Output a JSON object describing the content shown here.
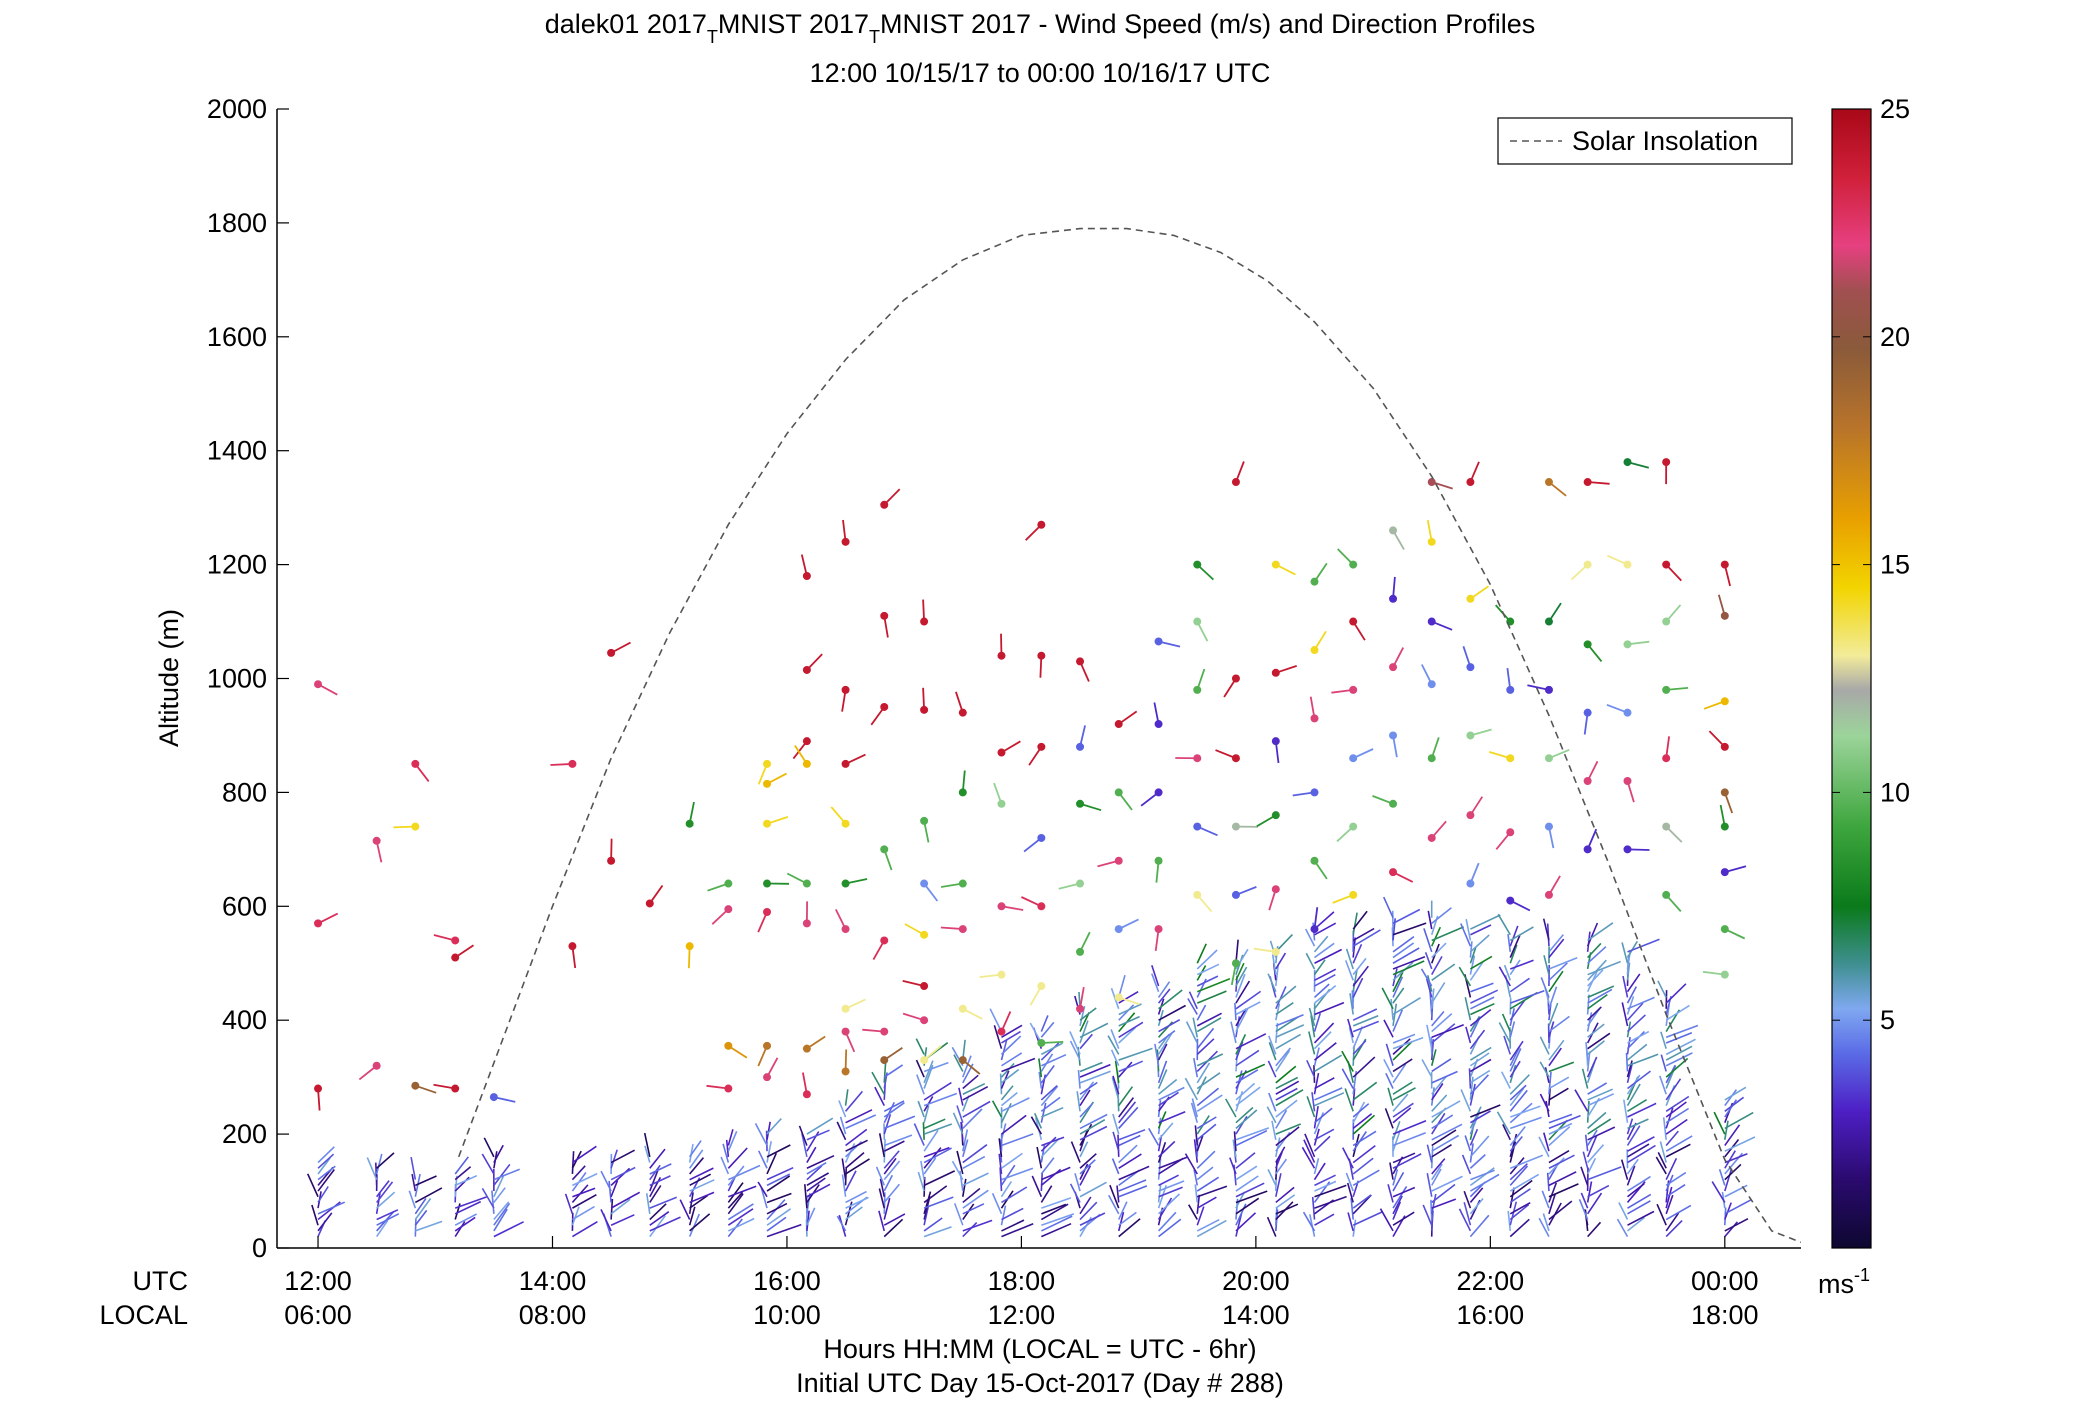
{
  "chart_data": {
    "type": "scatter",
    "title_line1_main": "dalek01 2017",
    "title_line1_sub1": "T",
    "title_line1_mid": "MNIST 2017",
    "title_line1_sub2": "T",
    "title_line1_end": "MNIST 2017 - Wind Speed (m/s) and Direction Profiles",
    "title_line2": "12:00 10/15/17 to 00:00 10/16/17  UTC",
    "ylabel": "Altitude (m)",
    "xlabel_line1": "Hours HH:MM  (LOCAL = UTC - 6hr)",
    "xlabel_line2": "Initial UTC Day 15-Oct-2017 (Day # 288)",
    "x_row_labels": [
      "UTC",
      "LOCAL"
    ],
    "xlim_hours_utc": [
      11.65,
      24.65
    ],
    "ylim": [
      0,
      2000
    ],
    "y_ticks": [
      0,
      200,
      400,
      600,
      800,
      1000,
      1200,
      1400,
      1600,
      1800,
      2000
    ],
    "x_ticks_utc": [
      {
        "hour": 12,
        "utc": "12:00",
        "local": "06:00"
      },
      {
        "hour": 14,
        "utc": "14:00",
        "local": "08:00"
      },
      {
        "hour": 16,
        "utc": "16:00",
        "local": "10:00"
      },
      {
        "hour": 18,
        "utc": "18:00",
        "local": "12:00"
      },
      {
        "hour": 20,
        "utc": "20:00",
        "local": "14:00"
      },
      {
        "hour": 22,
        "utc": "22:00",
        "local": "16:00"
      },
      {
        "hour": 24,
        "utc": "00:00",
        "local": "18:00"
      }
    ],
    "legend": {
      "label": "Solar Insolation",
      "placement": "top-right",
      "style": "dashed gray"
    },
    "colorbar": {
      "range": [
        0,
        25
      ],
      "ticks": [
        5,
        10,
        15,
        20,
        25
      ],
      "unit_base": "ms",
      "unit_exp": "-1",
      "colors": [
        "#0d0830",
        "#2a0a6e",
        "#4d1fc4",
        "#5a6ae6",
        "#7fa8f0",
        "#3e8f8f",
        "#0a7a1a",
        "#3ea63e",
        "#9cd49a",
        "#a8a8a8",
        "#f2ec9a",
        "#f2d400",
        "#e8a000",
        "#b8742a",
        "#8a5a3a",
        "#a05050",
        "#e64080",
        "#d0203a",
        "#a80818"
      ]
    },
    "solar_insolation": {
      "x_hours_utc": [
        13.2,
        13.6,
        14.0,
        14.5,
        15.0,
        15.5,
        16.0,
        16.5,
        17.0,
        17.5,
        18.0,
        18.5,
        18.9,
        19.3,
        19.7,
        20.1,
        20.5,
        21.0,
        21.5,
        22.0,
        22.5,
        23.0,
        23.5,
        24.0,
        24.4,
        24.65
      ],
      "y_m": [
        160,
        380,
        600,
        860,
        1080,
        1270,
        1430,
        1560,
        1665,
        1735,
        1778,
        1790,
        1790,
        1778,
        1748,
        1698,
        1626,
        1510,
        1355,
        1165,
        935,
        680,
        410,
        155,
        30,
        10
      ]
    },
    "profiles": [
      {
        "time": 12.0,
        "top_m": 150,
        "pts": [
          [
            990,
            22
          ],
          [
            570,
            23
          ],
          [
            280,
            24
          ]
        ]
      },
      {
        "time": 12.5,
        "top_m": 140,
        "pts": [
          [
            715,
            22
          ],
          [
            320,
            22
          ]
        ]
      },
      {
        "time": 12.83,
        "top_m": 120,
        "pts": [
          [
            850,
            23
          ],
          [
            740,
            15
          ],
          [
            285,
            19
          ]
        ]
      },
      {
        "time": 13.17,
        "top_m": 130,
        "pts": [
          [
            540,
            23
          ],
          [
            510,
            24
          ],
          [
            280,
            24
          ]
        ]
      },
      {
        "time": 13.5,
        "top_m": 160,
        "pts": [
          [
            265,
            4
          ]
        ]
      },
      {
        "time": 14.17,
        "top_m": 150,
        "pts": [
          [
            850,
            23
          ],
          [
            530,
            24
          ]
        ]
      },
      {
        "time": 14.5,
        "top_m": 150,
        "pts": [
          [
            1045,
            24
          ],
          [
            680,
            24
          ]
        ]
      },
      {
        "time": 14.83,
        "top_m": 160,
        "pts": [
          [
            605,
            24
          ]
        ]
      },
      {
        "time": 15.17,
        "top_m": 160,
        "pts": [
          [
            745,
            9
          ],
          [
            530,
            16
          ]
        ]
      },
      {
        "time": 15.5,
        "top_m": 180,
        "pts": [
          [
            640,
            10
          ],
          [
            595,
            22
          ],
          [
            355,
            17
          ],
          [
            280,
            23
          ]
        ]
      },
      {
        "time": 15.83,
        "top_m": 200,
        "pts": [
          [
            850,
            15
          ],
          [
            815,
            16
          ],
          [
            745,
            15
          ],
          [
            640,
            9
          ],
          [
            590,
            23
          ],
          [
            355,
            18
          ],
          [
            300,
            22
          ]
        ]
      },
      {
        "time": 16.17,
        "top_m": 200,
        "pts": [
          [
            1180,
            24
          ],
          [
            1015,
            24
          ],
          [
            890,
            24
          ],
          [
            850,
            16
          ],
          [
            640,
            10
          ],
          [
            570,
            22
          ],
          [
            350,
            18
          ],
          [
            270,
            23
          ]
        ]
      },
      {
        "time": 16.5,
        "top_m": 250,
        "pts": [
          [
            1240,
            24
          ],
          [
            980,
            24
          ],
          [
            850,
            24
          ],
          [
            745,
            15
          ],
          [
            640,
            9
          ],
          [
            560,
            22
          ],
          [
            420,
            14
          ],
          [
            380,
            22
          ],
          [
            310,
            18
          ]
        ]
      },
      {
        "time": 16.83,
        "top_m": 300,
        "pts": [
          [
            1305,
            24
          ],
          [
            1110,
            24
          ],
          [
            950,
            24
          ],
          [
            700,
            10
          ],
          [
            540,
            23
          ],
          [
            380,
            22
          ],
          [
            330,
            19
          ]
        ]
      },
      {
        "time": 17.17,
        "top_m": 340,
        "pts": [
          [
            1100,
            24
          ],
          [
            945,
            24
          ],
          [
            750,
            10
          ],
          [
            640,
            5
          ],
          [
            550,
            15
          ],
          [
            460,
            24
          ],
          [
            400,
            22
          ],
          [
            330,
            14
          ]
        ]
      },
      {
        "time": 17.5,
        "top_m": 330,
        "pts": [
          [
            940,
            24
          ],
          [
            800,
            9
          ],
          [
            640,
            10
          ],
          [
            560,
            22
          ],
          [
            420,
            14
          ],
          [
            330,
            19
          ]
        ]
      },
      {
        "time": 17.83,
        "top_m": 380,
        "pts": [
          [
            1040,
            24
          ],
          [
            870,
            24
          ],
          [
            780,
            11
          ],
          [
            600,
            22
          ],
          [
            480,
            14
          ],
          [
            380,
            23
          ]
        ]
      },
      {
        "time": 18.17,
        "top_m": 380,
        "pts": [
          [
            1270,
            24
          ],
          [
            1040,
            24
          ],
          [
            880,
            24
          ],
          [
            720,
            4
          ],
          [
            600,
            23
          ],
          [
            460,
            14
          ],
          [
            360,
            10
          ]
        ]
      },
      {
        "time": 18.5,
        "top_m": 420,
        "pts": [
          [
            1030,
            24
          ],
          [
            880,
            4
          ],
          [
            780,
            9
          ],
          [
            640,
            11
          ],
          [
            520,
            10
          ],
          [
            420,
            22
          ]
        ]
      },
      {
        "time": 18.83,
        "top_m": 440,
        "pts": [
          [
            920,
            24
          ],
          [
            800,
            10
          ],
          [
            680,
            22
          ],
          [
            560,
            5
          ],
          [
            440,
            14
          ]
        ]
      },
      {
        "time": 19.17,
        "top_m": 460,
        "pts": [
          [
            1065,
            4
          ],
          [
            920,
            3
          ],
          [
            800,
            3
          ],
          [
            680,
            10
          ],
          [
            560,
            22
          ]
        ]
      },
      {
        "time": 19.5,
        "top_m": 500,
        "pts": [
          [
            1200,
            9
          ],
          [
            1100,
            11
          ],
          [
            980,
            10
          ],
          [
            860,
            22
          ],
          [
            740,
            4
          ],
          [
            620,
            14
          ]
        ]
      },
      {
        "time": 19.83,
        "top_m": 500,
        "pts": [
          [
            1345,
            24
          ],
          [
            1000,
            24
          ],
          [
            860,
            24
          ],
          [
            740,
            12
          ],
          [
            620,
            4
          ],
          [
            500,
            10
          ]
        ]
      },
      {
        "time": 20.17,
        "top_m": 520,
        "pts": [
          [
            1200,
            15
          ],
          [
            1010,
            24
          ],
          [
            890,
            3
          ],
          [
            760,
            9
          ],
          [
            630,
            22
          ],
          [
            520,
            14
          ]
        ]
      },
      {
        "time": 20.5,
        "top_m": 560,
        "pts": [
          [
            1170,
            10
          ],
          [
            1050,
            15
          ],
          [
            930,
            22
          ],
          [
            800,
            4
          ],
          [
            680,
            10
          ],
          [
            560,
            3
          ]
        ]
      },
      {
        "time": 20.83,
        "top_m": 560,
        "pts": [
          [
            1200,
            10
          ],
          [
            1100,
            24
          ],
          [
            980,
            22
          ],
          [
            860,
            5
          ],
          [
            740,
            11
          ],
          [
            620,
            15
          ]
        ]
      },
      {
        "time": 21.17,
        "top_m": 580,
        "pts": [
          [
            1260,
            12
          ],
          [
            1140,
            3
          ],
          [
            1020,
            22
          ],
          [
            900,
            5
          ],
          [
            780,
            10
          ],
          [
            660,
            23
          ]
        ]
      },
      {
        "time": 21.5,
        "top_m": 580,
        "pts": [
          [
            1345,
            21
          ],
          [
            1240,
            15
          ],
          [
            1100,
            3
          ],
          [
            990,
            5
          ],
          [
            860,
            10
          ],
          [
            720,
            22
          ]
        ]
      },
      {
        "time": 21.83,
        "top_m": 560,
        "pts": [
          [
            1345,
            24
          ],
          [
            1140,
            15
          ],
          [
            1020,
            4
          ],
          [
            900,
            11
          ],
          [
            760,
            22
          ],
          [
            640,
            5
          ]
        ]
      },
      {
        "time": 22.17,
        "top_m": 550,
        "pts": [
          [
            1100,
            9
          ],
          [
            980,
            4
          ],
          [
            860,
            15
          ],
          [
            730,
            22
          ],
          [
            610,
            3
          ]
        ]
      },
      {
        "time": 22.5,
        "top_m": 540,
        "pts": [
          [
            1345,
            18
          ],
          [
            1100,
            8
          ],
          [
            980,
            3
          ],
          [
            860,
            11
          ],
          [
            740,
            5
          ],
          [
            620,
            22
          ]
        ]
      },
      {
        "time": 22.83,
        "top_m": 540,
        "pts": [
          [
            1345,
            24
          ],
          [
            1200,
            14
          ],
          [
            1060,
            9
          ],
          [
            940,
            4
          ],
          [
            820,
            22
          ],
          [
            700,
            3
          ]
        ]
      },
      {
        "time": 23.17,
        "top_m": 520,
        "pts": [
          [
            1380,
            8
          ],
          [
            1200,
            14
          ],
          [
            1060,
            11
          ],
          [
            940,
            5
          ],
          [
            820,
            22
          ],
          [
            700,
            3
          ]
        ]
      },
      {
        "time": 23.5,
        "top_m": 440,
        "pts": [
          [
            1380,
            24
          ],
          [
            1200,
            24
          ],
          [
            1100,
            11
          ],
          [
            980,
            10
          ],
          [
            860,
            23
          ],
          [
            740,
            12
          ],
          [
            620,
            10
          ]
        ]
      },
      {
        "time": 24.0,
        "top_m": 260,
        "pts": [
          [
            1200,
            24
          ],
          [
            1110,
            20
          ],
          [
            960,
            16
          ],
          [
            880,
            24
          ],
          [
            800,
            19
          ],
          [
            740,
            9
          ],
          [
            660,
            3
          ],
          [
            560,
            10
          ],
          [
            480,
            11
          ]
        ]
      }
    ]
  }
}
